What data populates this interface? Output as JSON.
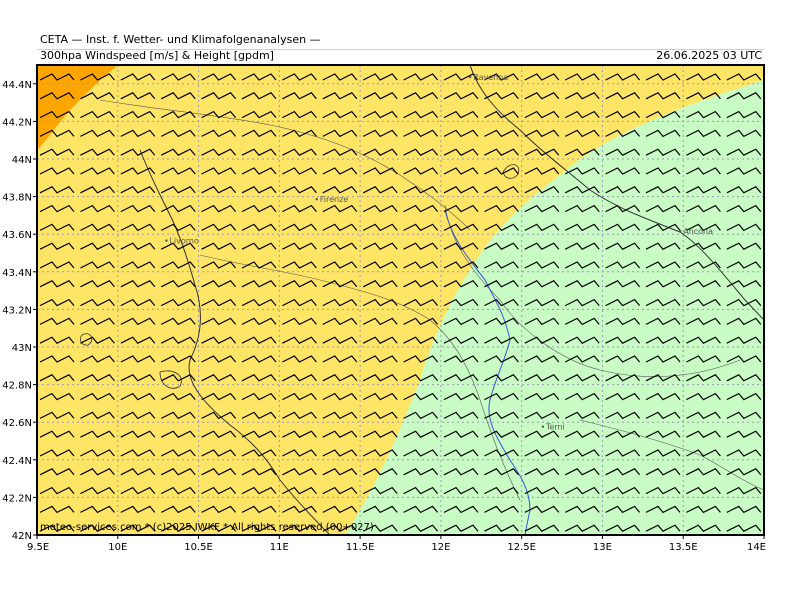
{
  "header": {
    "title": "CETA — Inst. f. Wetter- und Klimafolgenanalysen —",
    "subtitle": "300hpa Windspeed [m/s] & Height [gpdm]",
    "timestamp": "26.06.2025 03 UTC"
  },
  "axes": {
    "lon": {
      "range": [
        9.5,
        14.0
      ],
      "ticks": [
        {
          "v": 9.5,
          "label": "9.5E"
        },
        {
          "v": 10.0,
          "label": "10E"
        },
        {
          "v": 10.5,
          "label": "10.5E"
        },
        {
          "v": 11.0,
          "label": "11E"
        },
        {
          "v": 11.5,
          "label": "11.5E"
        },
        {
          "v": 12.0,
          "label": "12E"
        },
        {
          "v": 12.5,
          "label": "12.5E"
        },
        {
          "v": 13.0,
          "label": "13E"
        },
        {
          "v": 13.5,
          "label": "13.5E"
        },
        {
          "v": 14.0,
          "label": "14E"
        }
      ]
    },
    "lat": {
      "range": [
        42.0,
        44.5
      ],
      "ticks": [
        {
          "v": 42.0,
          "label": "42N"
        },
        {
          "v": 42.2,
          "label": "42.2N"
        },
        {
          "v": 42.4,
          "label": "42.4N"
        },
        {
          "v": 42.6,
          "label": "42.6N"
        },
        {
          "v": 42.8,
          "label": "42.8N"
        },
        {
          "v": 43.0,
          "label": "43N"
        },
        {
          "v": 43.2,
          "label": "43.2N"
        },
        {
          "v": 43.4,
          "label": "43.4N"
        },
        {
          "v": 43.6,
          "label": "43.6N"
        },
        {
          "v": 43.8,
          "label": "43.8N"
        },
        {
          "v": 44.0,
          "label": "44N"
        },
        {
          "v": 44.2,
          "label": "44.2N"
        },
        {
          "v": 44.4,
          "label": "44.4N"
        }
      ]
    }
  },
  "cities": [
    {
      "name": "Ravenna",
      "lon": 12.2,
      "lat": 44.42
    },
    {
      "name": "Firenze",
      "lon": 11.25,
      "lat": 43.77
    },
    {
      "name": "Livorno",
      "lon": 10.32,
      "lat": 43.55
    },
    {
      "name": "Ancona",
      "lon": 13.5,
      "lat": 43.6
    },
    {
      "name": "Terni",
      "lon": 12.65,
      "lat": 42.56
    }
  ],
  "colors": {
    "wind_orange": "#ffa500",
    "wind_yellow": "#ffe566",
    "wind_green": "#c8fcc4",
    "frame": "#000000",
    "grid": "#9a9ab8",
    "river": "#3355dd"
  },
  "wind_barbs": {
    "direction": "west-southwest",
    "glyph": "flag-barb-icon"
  },
  "credit": "meteo-services.com * (c)2025 IWKF * All rights reserved (00+027)"
}
